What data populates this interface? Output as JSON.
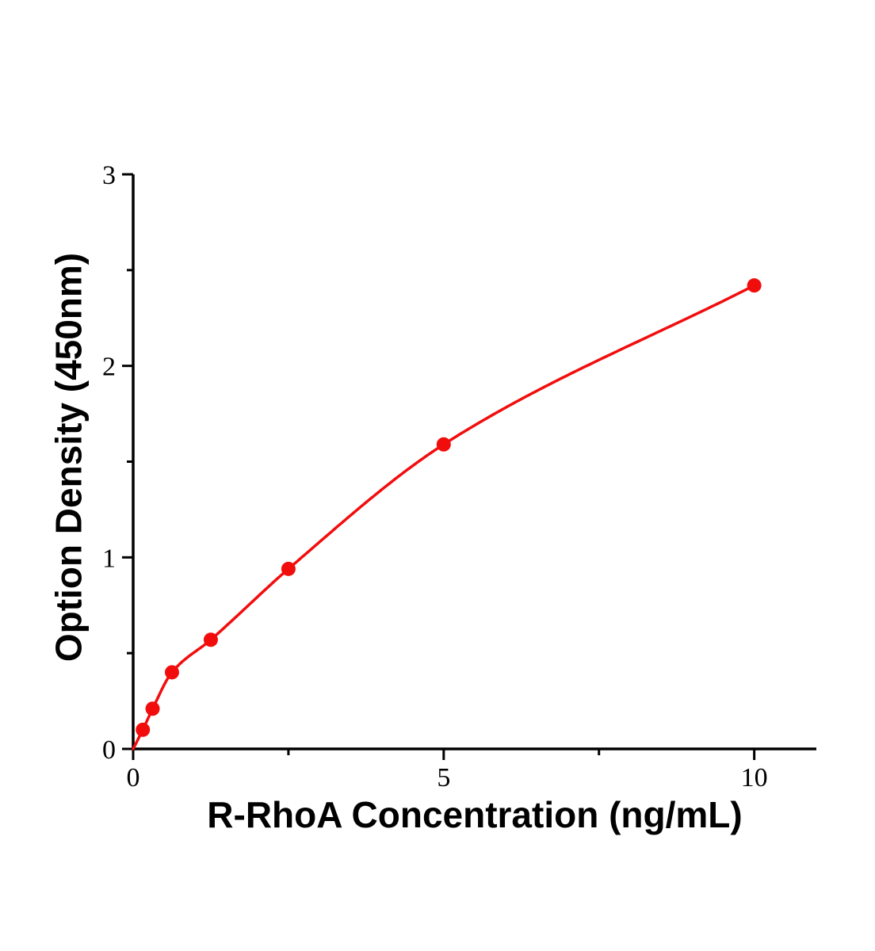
{
  "chart_data": {
    "type": "scatter",
    "title": "",
    "xlabel": "R-RhoA Concentration (ng/mL)",
    "ylabel": "Option Density (450nm)",
    "xlim": [
      0,
      11
    ],
    "ylim": [
      0,
      3
    ],
    "xticks": [
      0,
      5,
      10
    ],
    "x_tick_labels": [
      "0",
      "5",
      "10"
    ],
    "yticks": [
      0,
      1,
      2,
      3
    ],
    "y_tick_labels": [
      "0",
      "1",
      "2",
      "3"
    ],
    "x_minor_ticks": [
      2.5,
      7.5
    ],
    "y_minor_ticks": [
      0.5,
      1.5,
      2.5
    ],
    "grid": false,
    "legend": "none",
    "background_color": "#ffffff",
    "axis_color": "#000000",
    "series_color": "#f20d0d",
    "marker": "filled-circle",
    "curve_start": {
      "x": 0,
      "y": 0
    },
    "points": [
      {
        "x": 0.156,
        "y": 0.1
      },
      {
        "x": 0.313,
        "y": 0.21
      },
      {
        "x": 0.625,
        "y": 0.4
      },
      {
        "x": 1.25,
        "y": 0.57
      },
      {
        "x": 2.5,
        "y": 0.94
      },
      {
        "x": 5,
        "y": 1.59
      },
      {
        "x": 10,
        "y": 2.42
      }
    ]
  }
}
